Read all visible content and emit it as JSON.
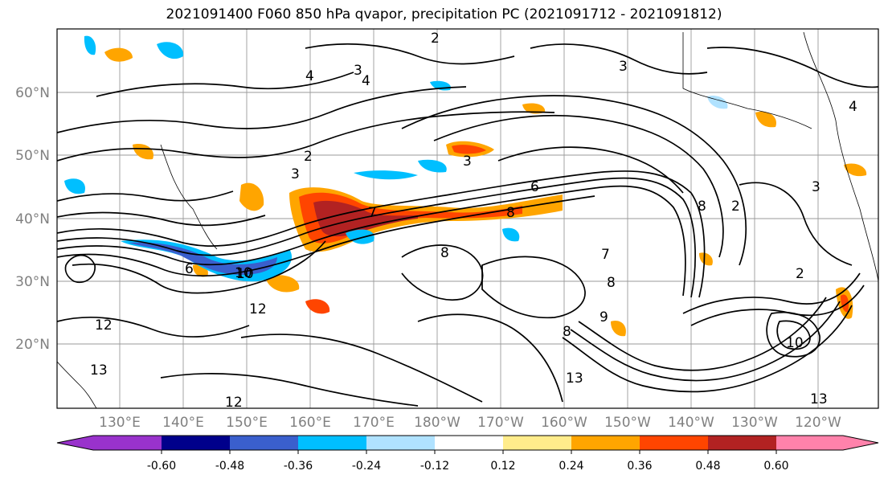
{
  "title": "2021091400 F060 850 hPa qvapor, precipitation PC (2021091712 - 2021091812)",
  "map": {
    "lat_labels": [
      "60°N",
      "50°N",
      "40°N",
      "30°N",
      "20°N"
    ],
    "lon_labels": [
      "130°E",
      "140°E",
      "150°E",
      "160°E",
      "170°E",
      "180°W",
      "170°W",
      "160°W",
      "150°W",
      "140°W",
      "130°W",
      "120°W"
    ],
    "label_color": "#808080",
    "contour_labels": [
      "2",
      "3",
      "4",
      "4",
      "3",
      "2",
      "3",
      "3",
      "6",
      "7",
      "8",
      "8",
      "10",
      "12",
      "12",
      "12",
      "13",
      "13",
      "13",
      "8",
      "9",
      "10",
      "2",
      "2",
      "3",
      "4",
      "8",
      "10",
      "7",
      "8",
      "6"
    ]
  },
  "colorbar": {
    "colors": [
      "#9932cc",
      "#00008b",
      "#3a5fcd",
      "#00bfff",
      "#b0e2ff",
      "#ffffff",
      "#ffec8b",
      "#ffa500",
      "#ff4500",
      "#b22222",
      "#ff82ab"
    ],
    "ticks": [
      "-0.60",
      "-0.48",
      "-0.36",
      "-0.24",
      "-0.12",
      "0.12",
      "0.24",
      "0.36",
      "0.48",
      "0.60"
    ]
  }
}
